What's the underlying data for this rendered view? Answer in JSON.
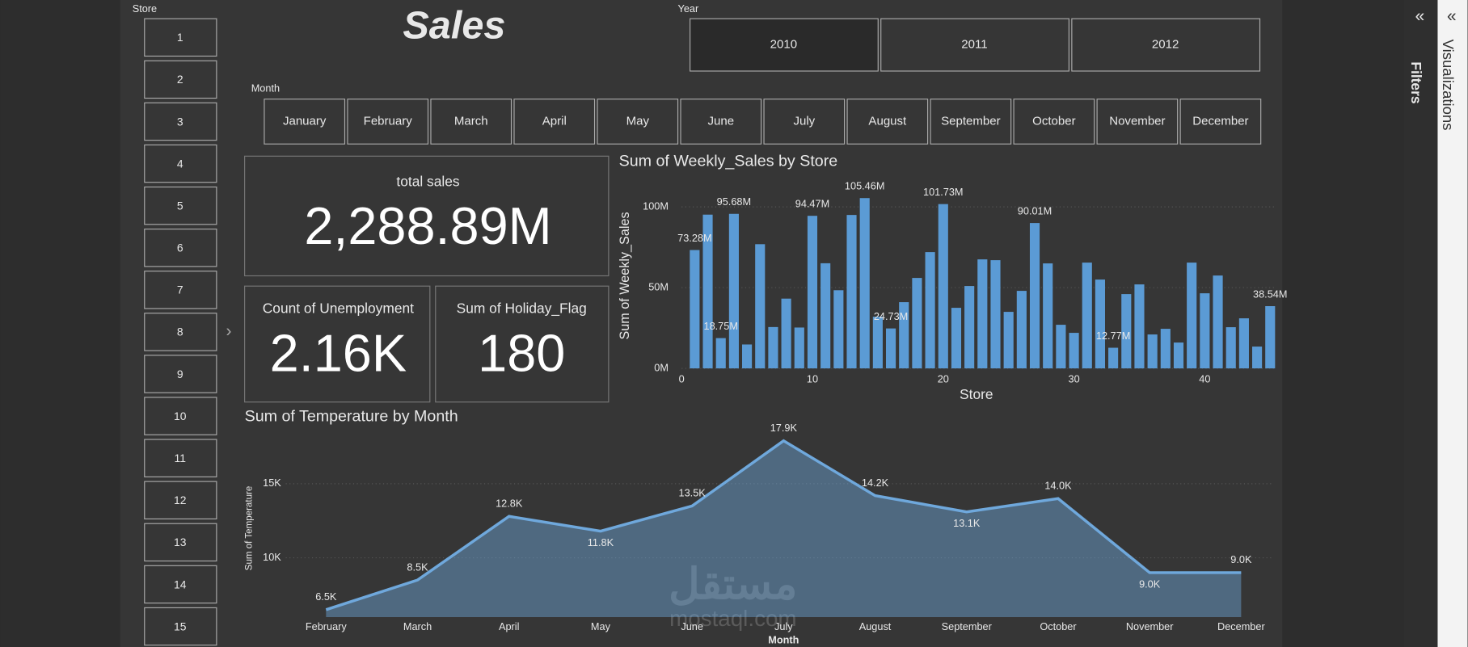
{
  "title": "Sales",
  "store_slicer": {
    "label": "Store",
    "items": [
      "1",
      "2",
      "3",
      "4",
      "5",
      "6",
      "7",
      "8",
      "9",
      "10",
      "11",
      "12",
      "13",
      "14",
      "15"
    ]
  },
  "year_slicer": {
    "label": "Year",
    "items": [
      "2010",
      "2011",
      "2012"
    ],
    "selected": "2010"
  },
  "month_slicer": {
    "label": "Month",
    "items": [
      "January",
      "February",
      "March",
      "April",
      "May",
      "June",
      "July",
      "August",
      "September",
      "October",
      "November",
      "December"
    ]
  },
  "cards": [
    {
      "label": "total sales",
      "value": "2,288.89M"
    },
    {
      "label": "Count of Unemployment",
      "value": "2.16K"
    },
    {
      "label": "Sum of Holiday_Flag",
      "value": "180"
    }
  ],
  "side_panes": [
    "Filters",
    "Visualizations"
  ],
  "watermark": {
    "arabic": "مستقل",
    "latin": "mostaql.com"
  },
  "chart_data": [
    {
      "type": "bar",
      "title": "Sum of Weekly_Sales by Store",
      "x_label": "Store",
      "y_label": "Sum of Weekly_Sales",
      "color": "#5b9bd5",
      "grid": true,
      "x": [
        1,
        2,
        3,
        4,
        5,
        6,
        7,
        8,
        9,
        10,
        11,
        12,
        13,
        14,
        15,
        16,
        17,
        18,
        19,
        20,
        21,
        22,
        23,
        24,
        25,
        26,
        27,
        28,
        29,
        30,
        31,
        32,
        33,
        34,
        35,
        36,
        37,
        38,
        39,
        40,
        41,
        42,
        43,
        44,
        45
      ],
      "values": [
        73.28,
        95.2,
        18.75,
        95.68,
        14.8,
        76.9,
        25.6,
        43.2,
        25.3,
        94.47,
        65.1,
        48.4,
        95.0,
        105.46,
        32,
        24.73,
        41,
        56,
        72,
        101.73,
        37.5,
        51,
        67.5,
        67,
        35,
        48,
        90.01,
        65,
        27,
        22,
        65.5,
        55,
        12.77,
        46,
        52,
        21,
        24.5,
        16,
        65.5,
        46.5,
        57.5,
        25.5,
        31,
        13.5,
        38.54
      ],
      "value_labels": [
        "73.28M",
        null,
        "18.75M",
        "95.68M",
        null,
        null,
        null,
        null,
        null,
        "94.47M",
        null,
        null,
        null,
        "105.46M",
        null,
        "24.73M",
        null,
        null,
        null,
        "101.73M",
        null,
        null,
        null,
        null,
        null,
        null,
        "90.01M",
        null,
        null,
        null,
        null,
        null,
        "12.77M",
        null,
        null,
        null,
        null,
        null,
        null,
        null,
        null,
        null,
        null,
        null,
        "38.54M"
      ],
      "xlim": [
        0,
        45.5
      ],
      "xticks": [
        0,
        10,
        20,
        30,
        40
      ],
      "ylim": [
        0,
        110
      ],
      "yticks": [
        {
          "value": 0,
          "label": "0M"
        },
        {
          "value": 50,
          "label": "50M"
        },
        {
          "value": 100,
          "label": "100M"
        }
      ]
    },
    {
      "type": "area",
      "title": "Sum of Temperature by Month",
      "x_label": "Month",
      "y_label": "Sum of Temperature",
      "color": "#6fa8dc",
      "grid": true,
      "categories": [
        "February",
        "March",
        "April",
        "May",
        "June",
        "July",
        "August",
        "September",
        "October",
        "November",
        "December"
      ],
      "values": [
        6.5,
        8.5,
        12.8,
        11.8,
        13.5,
        17.9,
        14.2,
        13.1,
        14.0,
        9.0,
        9.0
      ],
      "value_labels": [
        "6.5K",
        "8.5K",
        "12.8K",
        "11.8K",
        "13.5K",
        "17.9K",
        "14.2K",
        "13.1K",
        "14.0K",
        "9.0K",
        "9.0K"
      ],
      "ylim": [
        6,
        19
      ],
      "yticks": [
        {
          "value": 10,
          "label": "10K"
        },
        {
          "value": 15,
          "label": "15K"
        }
      ]
    }
  ]
}
